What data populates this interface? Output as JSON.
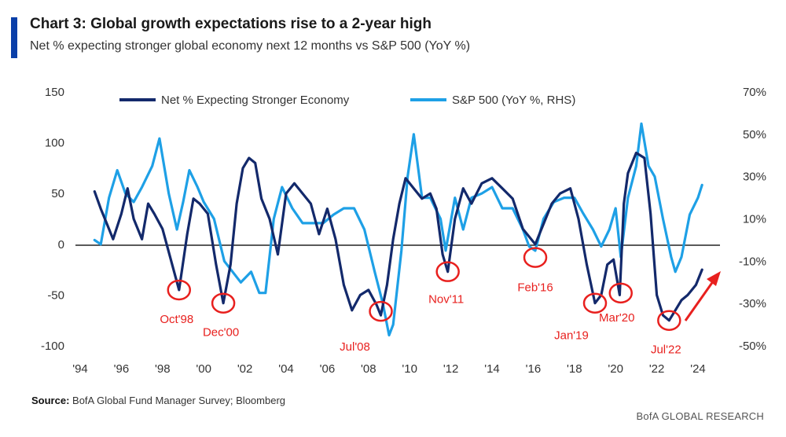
{
  "header": {
    "title": "Chart 3: Global growth expectations rise to a 2-year high",
    "subtitle": "Net % expecting stronger global economy next 12 months vs S&P 500 (YoY %)"
  },
  "footer": {
    "source_label": "Source:",
    "source_text": " BofA Global Fund Manager Survey; Bloomberg",
    "brand": "BofA GLOBAL RESEARCH"
  },
  "colors": {
    "net_series": "#13296b",
    "sp_series": "#1ea0e6",
    "annotation": "#e8201e",
    "accent": "#0a3fa8"
  },
  "chart_data": {
    "type": "line",
    "xlim": [
      1994,
      2025
    ],
    "ylim_left": [
      -100,
      150
    ],
    "ylim_right": [
      -50,
      70
    ],
    "left_ticks": [
      "150",
      "100",
      "50",
      "0",
      "-50",
      "-100"
    ],
    "left_tick_values": [
      150,
      100,
      50,
      0,
      -50,
      -100
    ],
    "right_ticks": [
      "70%",
      "50%",
      "30%",
      "10%",
      "-10%",
      "-30%",
      "-50%"
    ],
    "right_tick_values": [
      70,
      50,
      30,
      10,
      -10,
      -30,
      -50
    ],
    "x_ticks": [
      "'94",
      "'96",
      "'98",
      "'00",
      "'02",
      "'04",
      "'06",
      "'08",
      "'10",
      "'12",
      "'14",
      "'16",
      "'18",
      "'20",
      "'22",
      "'24"
    ],
    "x_tick_values": [
      1994,
      1996,
      1998,
      2000,
      2002,
      2004,
      2006,
      2008,
      2010,
      2012,
      2014,
      2016,
      2018,
      2020,
      2022,
      2024
    ],
    "legend": [
      "Net % Expecting Stronger Economy",
      "S&P 500 (YoY %, RHS)"
    ],
    "grid": false,
    "series": [
      {
        "name": "Net % Expecting Stronger Economy",
        "axis": "left",
        "x": [
          1994.7,
          1995.0,
          1995.3,
          1995.6,
          1996.0,
          1996.3,
          1996.6,
          1997.0,
          1997.3,
          1997.6,
          1998.0,
          1998.4,
          1998.8,
          1999.2,
          1999.5,
          1999.8,
          2000.2,
          2000.6,
          2000.95,
          2001.3,
          2001.6,
          2001.9,
          2002.2,
          2002.5,
          2002.8,
          2003.2,
          2003.6,
          2004.0,
          2004.4,
          2004.8,
          2005.2,
          2005.6,
          2006.0,
          2006.4,
          2006.8,
          2007.2,
          2007.6,
          2008.0,
          2008.4,
          2008.6,
          2008.9,
          2009.2,
          2009.5,
          2009.8,
          2010.2,
          2010.6,
          2011.0,
          2011.3,
          2011.6,
          2011.85,
          2012.2,
          2012.6,
          2013.0,
          2013.5,
          2014.0,
          2014.5,
          2015.0,
          2015.5,
          2016.1,
          2016.5,
          2016.9,
          2017.3,
          2017.8,
          2018.2,
          2018.6,
          2019.0,
          2019.3,
          2019.6,
          2019.9,
          2020.2,
          2020.4,
          2020.6,
          2021.0,
          2021.4,
          2021.7,
          2022.0,
          2022.3,
          2022.6,
          2022.9,
          2023.2,
          2023.5,
          2023.9,
          2024.2
        ],
        "values": [
          52,
          35,
          20,
          5,
          30,
          55,
          25,
          5,
          40,
          30,
          15,
          -15,
          -45,
          10,
          45,
          40,
          30,
          -20,
          -58,
          -20,
          40,
          75,
          85,
          80,
          45,
          25,
          -10,
          50,
          60,
          50,
          40,
          10,
          35,
          5,
          -40,
          -65,
          -50,
          -45,
          -60,
          -70,
          -40,
          5,
          40,
          65,
          55,
          45,
          50,
          35,
          -10,
          -27,
          25,
          55,
          40,
          60,
          65,
          55,
          45,
          15,
          0,
          20,
          40,
          50,
          55,
          25,
          -20,
          -58,
          -50,
          -20,
          -15,
          -50,
          40,
          70,
          90,
          85,
          30,
          -50,
          -70,
          -75,
          -65,
          -55,
          -50,
          -40,
          -25
        ]
      },
      {
        "name": "S&P 500 (YoY %, RHS)",
        "axis": "right",
        "x": [
          1994.7,
          1995.0,
          1995.4,
          1995.8,
          1996.2,
          1996.6,
          1997.0,
          1997.5,
          1997.85,
          1998.3,
          1998.7,
          1999.0,
          1999.3,
          1999.7,
          2000.0,
          2000.5,
          2001.0,
          2001.4,
          2001.8,
          2002.3,
          2002.7,
          2003.0,
          2003.4,
          2003.8,
          2004.3,
          2004.8,
          2005.3,
          2005.8,
          2006.3,
          2006.8,
          2007.3,
          2007.8,
          2008.3,
          2008.7,
          2009.0,
          2009.2,
          2009.6,
          2009.9,
          2010.2,
          2010.6,
          2011.0,
          2011.5,
          2011.75,
          2012.2,
          2012.6,
          2013.0,
          2013.5,
          2014.0,
          2014.5,
          2015.0,
          2015.5,
          2015.8,
          2016.1,
          2016.5,
          2017.0,
          2017.5,
          2018.0,
          2018.4,
          2018.9,
          2019.3,
          2019.7,
          2020.0,
          2020.25,
          2020.6,
          2021.0,
          2021.25,
          2021.6,
          2021.9,
          2022.3,
          2022.7,
          2022.9,
          2023.2,
          2023.6,
          2024.0,
          2024.2
        ],
        "values": [
          0,
          -2,
          20,
          33,
          22,
          18,
          25,
          35,
          48,
          22,
          5,
          18,
          33,
          25,
          18,
          10,
          -10,
          -15,
          -20,
          -15,
          -25,
          -25,
          10,
          25,
          15,
          8,
          8,
          8,
          12,
          15,
          15,
          5,
          -15,
          -30,
          -45,
          -40,
          -5,
          30,
          50,
          20,
          20,
          10,
          -5,
          20,
          5,
          20,
          22,
          25,
          15,
          15,
          5,
          -3,
          -5,
          10,
          18,
          20,
          20,
          13,
          5,
          -3,
          5,
          15,
          -8,
          20,
          35,
          55,
          35,
          30,
          10,
          -8,
          -15,
          -8,
          12,
          20,
          26
        ]
      }
    ],
    "annotations": [
      {
        "label": "Oct'98",
        "x": 1998.8,
        "y": -45
      },
      {
        "label": "Dec'00",
        "x": 2000.95,
        "y": -58
      },
      {
        "label": "Jul'08",
        "x": 2008.6,
        "y": -66
      },
      {
        "label": "Nov'11",
        "x": 2011.85,
        "y": -27
      },
      {
        "label": "Feb'16",
        "x": 2016.1,
        "y": -13
      },
      {
        "label": "Jan'19",
        "x": 2019.0,
        "y": -58
      },
      {
        "label": "Mar'20",
        "x": 2020.25,
        "y": -48
      },
      {
        "label": "Jul'22",
        "x": 2022.6,
        "y": -75
      }
    ]
  }
}
